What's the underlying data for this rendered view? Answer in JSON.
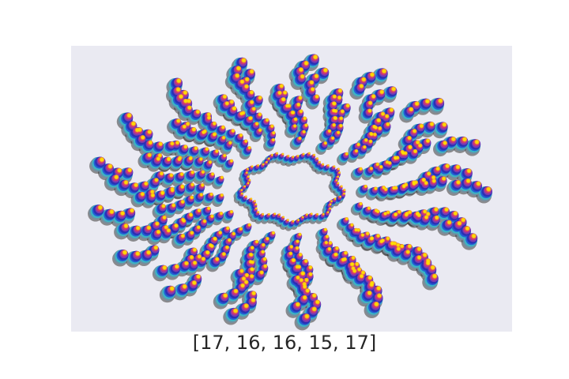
{
  "chart_data": {
    "type": "scatter",
    "title": "[17, 16, 16, 15, 17]",
    "pattern": "radial spirograph rings of layered colored dots",
    "arm_counts": [
      17,
      16,
      16,
      15,
      17
    ],
    "axes_visible": false,
    "grid": false,
    "background_color": "#eaeaf2",
    "layer_colors": [
      "#3a3a3a",
      "#6f8fa2",
      "#35b8c8",
      "#1f58d6",
      "#2c2cb0",
      "#8a3bb0",
      "#d63a6a",
      "#f5a623",
      "#ffe000"
    ],
    "x_range": [
      -1.12,
      1.12
    ],
    "y_range": [
      -1.0,
      1.0
    ]
  }
}
